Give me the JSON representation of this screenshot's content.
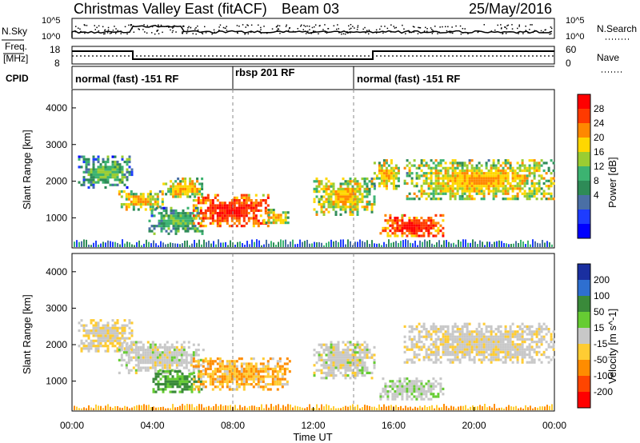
{
  "header": {
    "title": "Christmas Valley East (fitACF)",
    "beam": "Beam 03",
    "date": "25/May/2016"
  },
  "nsky_panel": {
    "left_label": "N.Sky",
    "left_ticks": [
      "10^5",
      "10^0"
    ],
    "right_label": "N.Search",
    "right_ticks": [
      "10^5",
      "10^0"
    ]
  },
  "freq_panel": {
    "left_label_1": "Freq.",
    "left_label_2": "[MHz]",
    "left_ticks": [
      "18",
      "8"
    ],
    "right_label": "Nave",
    "right_ticks": [
      "60",
      "0"
    ]
  },
  "cpid_panel": {
    "label": "CPID",
    "modes": [
      {
        "start_hr": 0,
        "text": "normal (fast) -151 RF"
      },
      {
        "start_hr": 8,
        "text": "rbsp 201 RF"
      },
      {
        "start_hr": 14,
        "text": "normal (fast) -151 RF"
      }
    ]
  },
  "power_colorbar": {
    "label": "Power [dB]",
    "ticks": [
      "28",
      "24",
      "20",
      "16",
      "12",
      "8",
      "4"
    ],
    "colors": [
      "#ff0000",
      "#ff3a00",
      "#ff8800",
      "#ffd700",
      "#9acd32",
      "#3cb371",
      "#2e8b57",
      "#4a6fa5",
      "#1e3cff",
      "#0000ff"
    ]
  },
  "velocity_colorbar": {
    "label": "Velocity [m s^-1]",
    "ticks": [
      "200",
      "100",
      "50",
      "15",
      "-15",
      "-50",
      "-100",
      "-200"
    ],
    "colors": [
      "#1a2fa0",
      "#2e6fd0",
      "#3a8a3a",
      "#66cc33",
      "#c8c8c8",
      "#ffcc33",
      "#ff8c00",
      "#ff4500",
      "#ff0000"
    ]
  },
  "chart_data": {
    "type": "heatmap",
    "x_axis": {
      "label": "Time UT",
      "ticks": [
        "00:00",
        "04:00",
        "08:00",
        "12:00",
        "16:00",
        "20:00",
        "00:00"
      ],
      "range_hours": [
        0,
        24
      ]
    },
    "y_axis": {
      "label": "Slant Range [km]",
      "ticks": [
        "1000",
        "2000",
        "3000",
        "4000"
      ],
      "range_km": [
        180,
        4500
      ]
    },
    "power_regions": [
      {
        "t0": 0.3,
        "t1": 3.0,
        "r0": 1850,
        "r1": 2700,
        "level": "low"
      },
      {
        "t0": 2.3,
        "t1": 4.5,
        "r0": 1250,
        "r1": 1750,
        "level": "mid"
      },
      {
        "t0": 4.5,
        "t1": 6.5,
        "r0": 1550,
        "r1": 2100,
        "level": "mid"
      },
      {
        "t0": 3.8,
        "t1": 6.5,
        "r0": 600,
        "r1": 1300,
        "level": "low"
      },
      {
        "t0": 6.0,
        "t1": 9.8,
        "r0": 800,
        "r1": 1650,
        "level": "high"
      },
      {
        "t0": 9.5,
        "t1": 10.8,
        "r0": 850,
        "r1": 1250,
        "level": "mid"
      },
      {
        "t0": 12.0,
        "t1": 15.0,
        "r0": 1100,
        "r1": 2100,
        "level": "mid"
      },
      {
        "t0": 15.3,
        "t1": 18.5,
        "r0": 500,
        "r1": 1100,
        "level": "high"
      },
      {
        "t0": 15.0,
        "t1": 16.3,
        "r0": 1800,
        "r1": 2600,
        "level": "mid"
      },
      {
        "t0": 16.5,
        "t1": 24.0,
        "r0": 1500,
        "r1": 2600,
        "level": "mid"
      }
    ],
    "velocity_regions": [
      {
        "t0": 0.3,
        "t1": 3.0,
        "r0": 1850,
        "r1": 2700,
        "v": -10
      },
      {
        "t0": 2.3,
        "t1": 6.5,
        "r0": 1250,
        "r1": 2100,
        "v": 0
      },
      {
        "t0": 4.0,
        "t1": 6.5,
        "r0": 700,
        "r1": 1300,
        "v": 40
      },
      {
        "t0": 6.0,
        "t1": 10.8,
        "r0": 800,
        "r1": 1650,
        "v": -30
      },
      {
        "t0": 12.0,
        "t1": 15.0,
        "r0": 1100,
        "r1": 2100,
        "v": 0
      },
      {
        "t0": 15.3,
        "t1": 18.5,
        "r0": 500,
        "r1": 1100,
        "v": 5
      },
      {
        "t0": 16.5,
        "t1": 24.0,
        "r0": 1500,
        "r1": 2600,
        "v": -5
      }
    ]
  }
}
